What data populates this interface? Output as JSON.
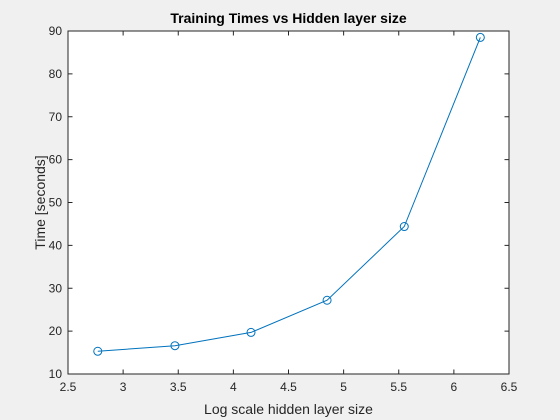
{
  "chart_data": {
    "type": "line",
    "title": "Training Times vs Hidden layer size",
    "xlabel": "Log scale hidden layer size",
    "ylabel": "Time [seconds]",
    "xlim": [
      2.5,
      6.5
    ],
    "ylim": [
      10,
      90
    ],
    "xticks": [
      2.5,
      3,
      3.5,
      4,
      4.5,
      5,
      5.5,
      6,
      6.5
    ],
    "xtick_labels": [
      "2.5",
      "3",
      "3.5",
      "4",
      "4.5",
      "5",
      "5.5",
      "6",
      "6.5"
    ],
    "yticks": [
      10,
      20,
      30,
      40,
      50,
      60,
      70,
      80,
      90
    ],
    "ytick_labels": [
      "10",
      "20",
      "30",
      "40",
      "50",
      "60",
      "70",
      "80",
      "90"
    ],
    "grid": false,
    "marker": "circle",
    "series": [
      {
        "color": "#0072bd",
        "x": [
          2.77,
          3.47,
          4.16,
          4.85,
          5.55,
          6.24
        ],
        "y": [
          15.3,
          16.6,
          19.7,
          27.2,
          44.4,
          88.5
        ]
      }
    ]
  }
}
